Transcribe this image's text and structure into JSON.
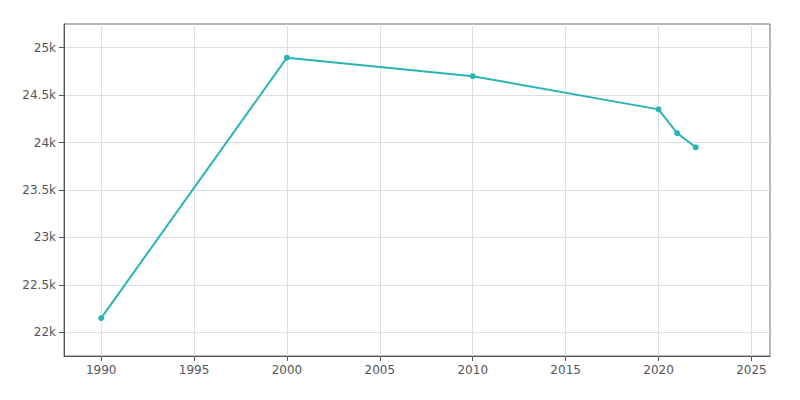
{
  "chart_data": {
    "type": "line",
    "x": [
      1990,
      2000,
      2010,
      2020,
      2021,
      2022
    ],
    "values": [
      22150,
      24895,
      24700,
      24350,
      24100,
      23950
    ],
    "color": "#2ab5b5",
    "marker": "circle",
    "xlim": [
      1988,
      2026
    ],
    "xticks": [
      1990,
      1995,
      2000,
      2005,
      2010,
      2015,
      2020,
      2025
    ],
    "ylim": [
      21750,
      25250
    ],
    "yticks": [
      {
        "value": 22000,
        "label": "22k"
      },
      {
        "value": 22500,
        "label": "22.5k"
      },
      {
        "value": 23000,
        "label": "23k"
      },
      {
        "value": 23500,
        "label": "23.5k"
      },
      {
        "value": 24000,
        "label": "24k"
      },
      {
        "value": 24500,
        "label": "24.5k"
      },
      {
        "value": 25000,
        "label": "25k"
      }
    ],
    "grid": true
  }
}
